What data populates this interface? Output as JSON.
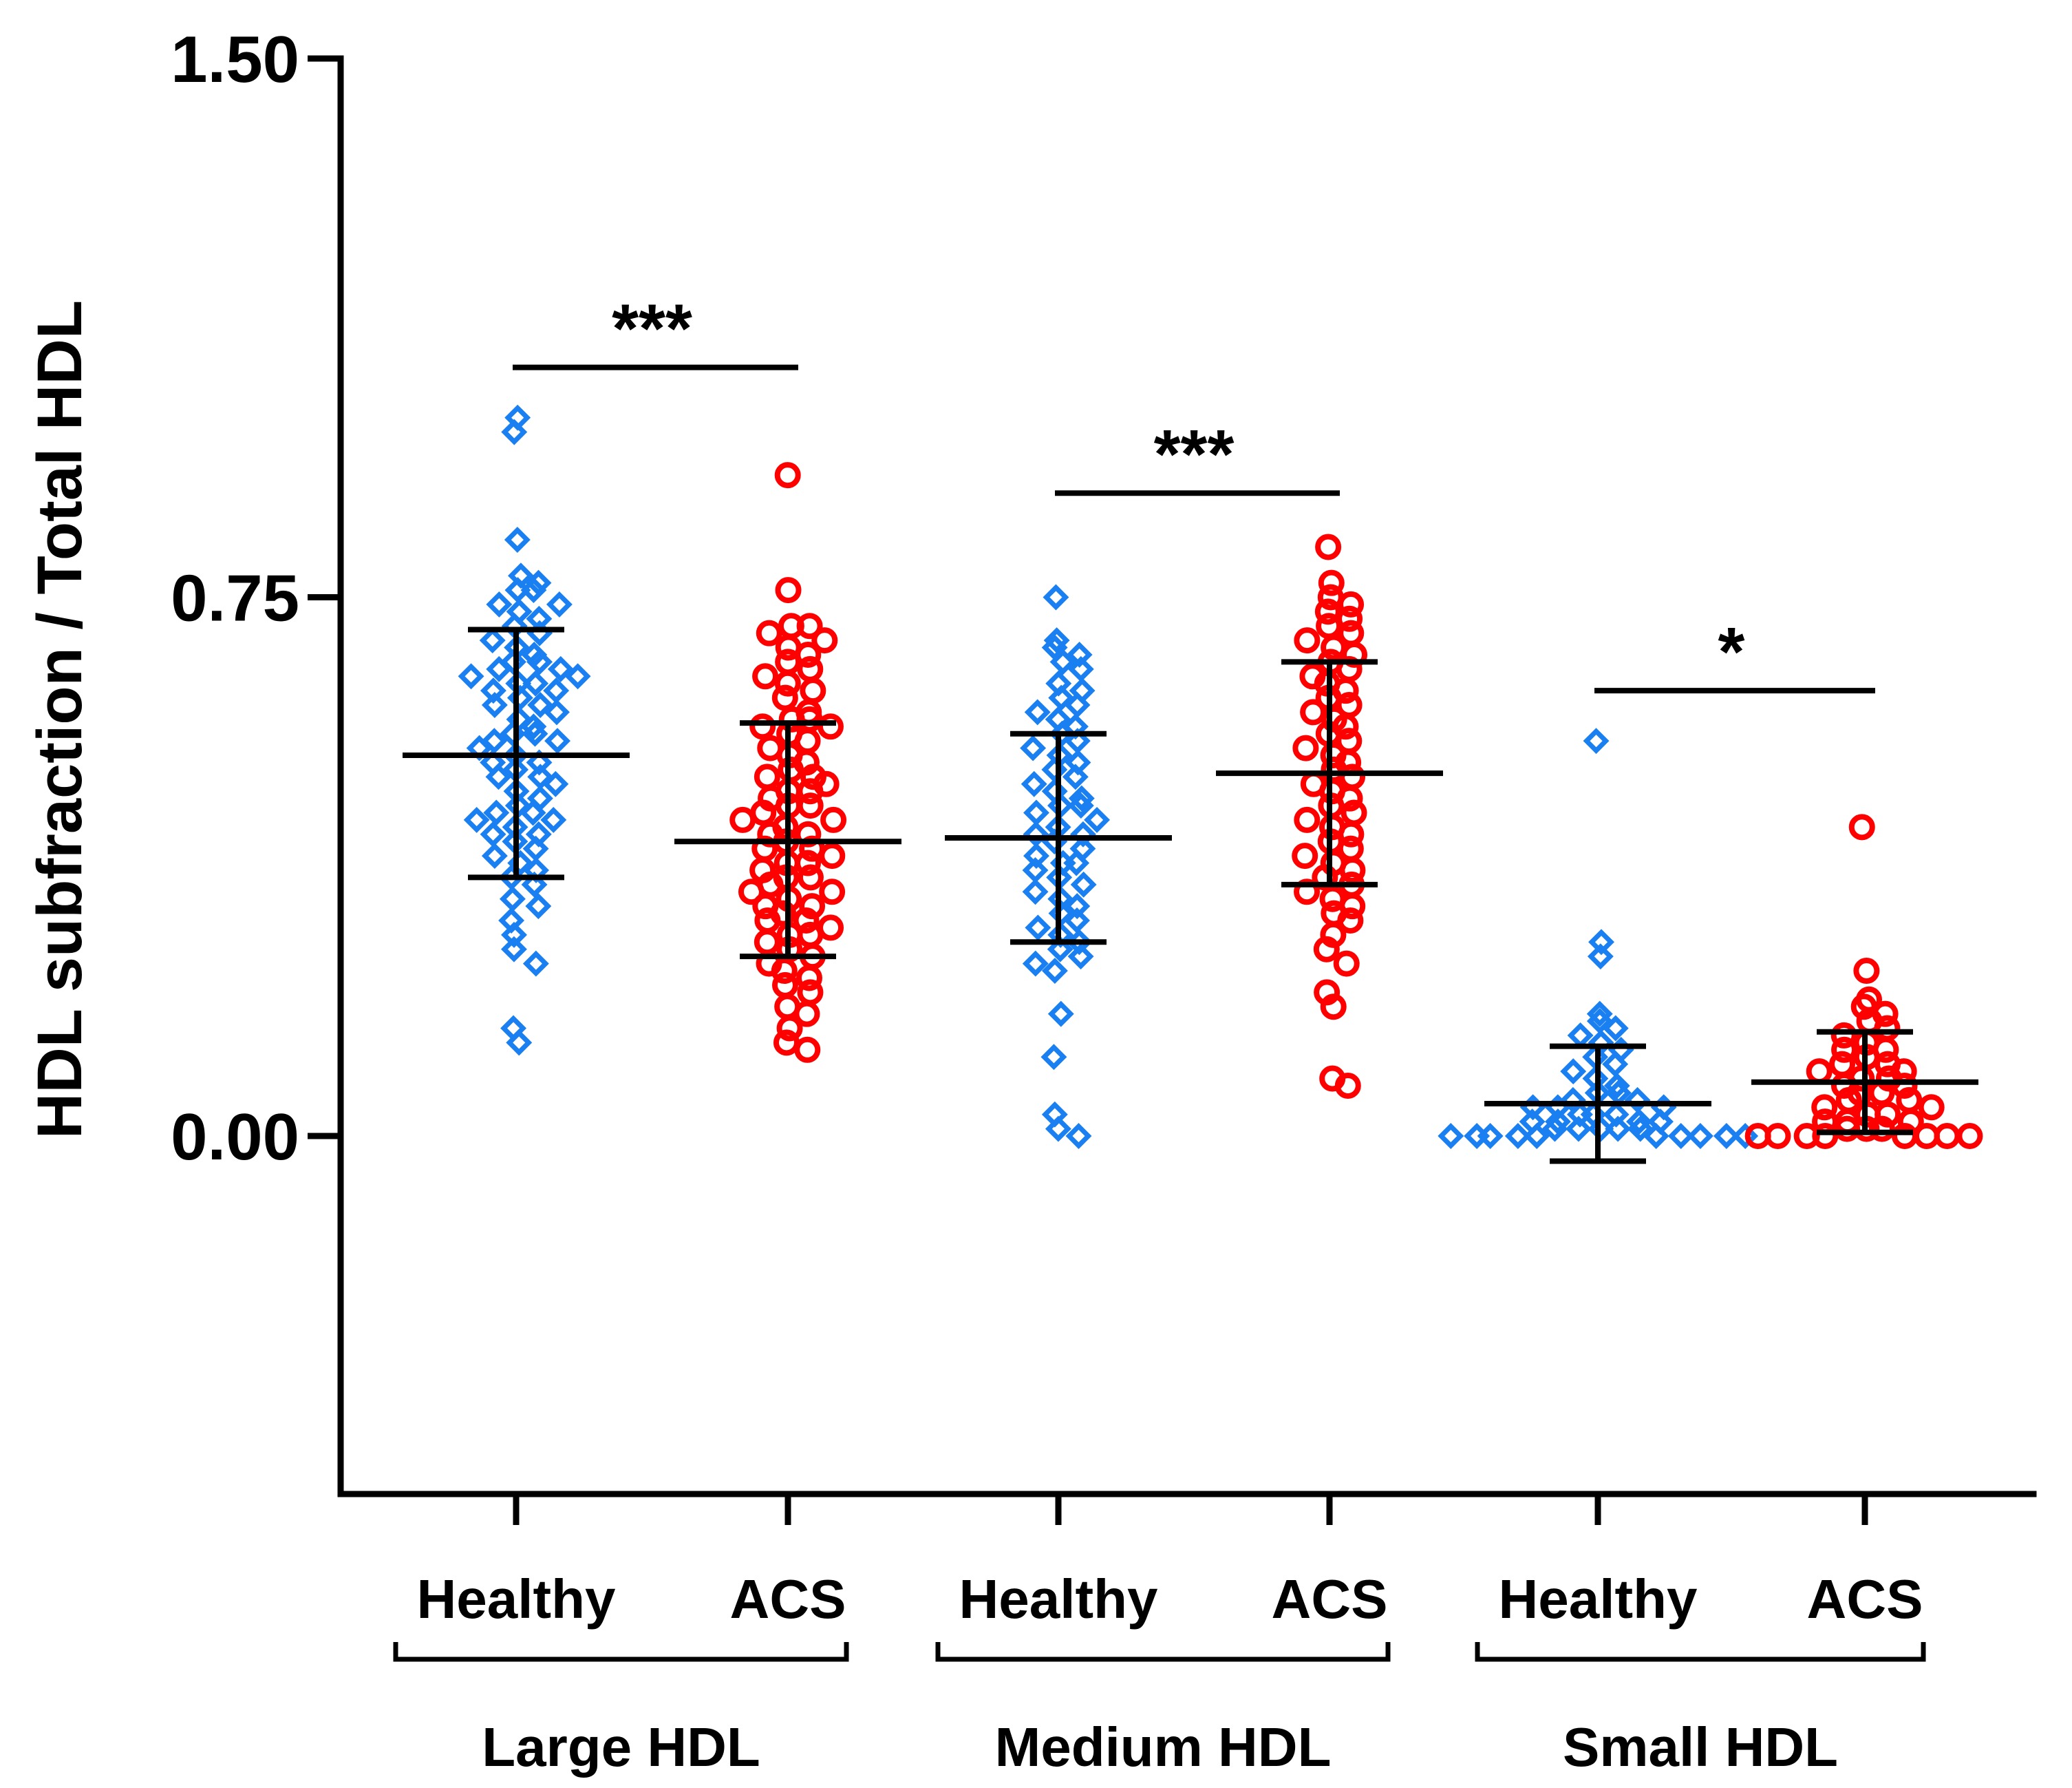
{
  "chart_data": {
    "type": "scatter",
    "title": "",
    "ylabel": "HDL subfraction / Total HDL",
    "xlabel": "",
    "ylim": [
      -0.5,
      1.5
    ],
    "yticks": [
      {
        "value": 1.5,
        "label": "1.50"
      },
      {
        "value": 0.75,
        "label": "0.75"
      },
      {
        "value": 0.0,
        "label": "0.00"
      }
    ],
    "colors": {
      "Healthy": "#1a7ff0",
      "ACS": "#ff0000",
      "axis": "#000000"
    },
    "markers": {
      "Healthy": "diamond",
      "ACS": "circle"
    },
    "groups": [
      {
        "name": "Large HDL",
        "significance": "***",
        "sig_y": 1.07,
        "series": [
          {
            "name": "Healthy",
            "mean": 0.53,
            "sd_low": 0.36,
            "sd_high": 0.705,
            "values": [
              1.0,
              0.98,
              0.83,
              0.78,
              0.77,
              0.76,
              0.76,
              0.74,
              0.74,
              0.73,
              0.72,
              0.71,
              0.7,
              0.69,
              0.68,
              0.67,
              0.66,
              0.66,
              0.65,
              0.65,
              0.64,
              0.64,
              0.63,
              0.63,
              0.62,
              0.62,
              0.61,
              0.6,
              0.6,
              0.59,
              0.58,
              0.57,
              0.56,
              0.56,
              0.55,
              0.55,
              0.54,
              0.53,
              0.52,
              0.52,
              0.51,
              0.5,
              0.5,
              0.49,
              0.48,
              0.47,
              0.46,
              0.45,
              0.45,
              0.44,
              0.44,
              0.43,
              0.42,
              0.42,
              0.41,
              0.4,
              0.39,
              0.38,
              0.37,
              0.36,
              0.35,
              0.33,
              0.32,
              0.3,
              0.28,
              0.26,
              0.24,
              0.15,
              0.13
            ]
          },
          {
            "name": "ACS",
            "mean": 0.41,
            "sd_low": 0.25,
            "sd_high": 0.575,
            "values": [
              0.92,
              0.76,
              0.71,
              0.71,
              0.7,
              0.69,
              0.68,
              0.67,
              0.66,
              0.65,
              0.64,
              0.63,
              0.62,
              0.61,
              0.59,
              0.58,
              0.58,
              0.57,
              0.57,
              0.56,
              0.55,
              0.54,
              0.53,
              0.52,
              0.51,
              0.5,
              0.5,
              0.49,
              0.48,
              0.48,
              0.47,
              0.46,
              0.46,
              0.45,
              0.44,
              0.44,
              0.43,
              0.42,
              0.42,
              0.41,
              0.4,
              0.4,
              0.39,
              0.38,
              0.38,
              0.37,
              0.36,
              0.36,
              0.35,
              0.34,
              0.34,
              0.33,
              0.32,
              0.32,
              0.31,
              0.3,
              0.3,
              0.29,
              0.28,
              0.28,
              0.27,
              0.26,
              0.25,
              0.24,
              0.23,
              0.22,
              0.21,
              0.2,
              0.18,
              0.17,
              0.15,
              0.13,
              0.12
            ]
          }
        ]
      },
      {
        "name": "Medium HDL",
        "significance": "***",
        "sig_y": 0.895,
        "series": [
          {
            "name": "Healthy",
            "mean": 0.415,
            "sd_low": 0.27,
            "sd_high": 0.56,
            "values": [
              0.75,
              0.69,
              0.68,
              0.67,
              0.66,
              0.65,
              0.63,
              0.62,
              0.61,
              0.6,
              0.59,
              0.58,
              0.57,
              0.56,
              0.55,
              0.54,
              0.53,
              0.52,
              0.51,
              0.5,
              0.49,
              0.48,
              0.47,
              0.46,
              0.46,
              0.45,
              0.44,
              0.43,
              0.42,
              0.42,
              0.41,
              0.4,
              0.39,
              0.38,
              0.38,
              0.37,
              0.36,
              0.35,
              0.34,
              0.33,
              0.32,
              0.31,
              0.3,
              0.29,
              0.28,
              0.27,
              0.26,
              0.25,
              0.24,
              0.23,
              0.17,
              0.11,
              0.03,
              0.01,
              0.0
            ]
          },
          {
            "name": "ACS",
            "mean": 0.505,
            "sd_low": 0.35,
            "sd_high": 0.66,
            "values": [
              0.82,
              0.77,
              0.75,
              0.74,
              0.73,
              0.72,
              0.71,
              0.7,
              0.69,
              0.68,
              0.67,
              0.66,
              0.65,
              0.64,
              0.63,
              0.62,
              0.61,
              0.6,
              0.59,
              0.58,
              0.57,
              0.56,
              0.55,
              0.54,
              0.53,
              0.52,
              0.51,
              0.5,
              0.49,
              0.48,
              0.47,
              0.46,
              0.45,
              0.44,
              0.43,
              0.42,
              0.41,
              0.4,
              0.39,
              0.38,
              0.37,
              0.36,
              0.35,
              0.34,
              0.33,
              0.32,
              0.31,
              0.3,
              0.28,
              0.26,
              0.24,
              0.2,
              0.18,
              0.08,
              0.07
            ]
          }
        ]
      },
      {
        "name": "Small HDL",
        "significance": "*",
        "sig_y": 0.62,
        "series": [
          {
            "name": "Healthy",
            "mean": 0.045,
            "sd_low": -0.035,
            "sd_high": 0.125,
            "values": [
              0.55,
              0.27,
              0.25,
              0.17,
              0.16,
              0.15,
              0.14,
              0.13,
              0.12,
              0.11,
              0.1,
              0.09,
              0.08,
              0.07,
              0.06,
              0.06,
              0.05,
              0.05,
              0.04,
              0.04,
              0.04,
              0.03,
              0.03,
              0.03,
              0.02,
              0.02,
              0.02,
              0.02,
              0.01,
              0.01,
              0.01,
              0.01,
              0.01,
              0.0,
              0.0,
              0.0,
              0.0,
              0.0,
              0.0,
              0.0,
              0.0,
              0.0,
              0.0
            ]
          },
          {
            "name": "ACS",
            "mean": 0.075,
            "sd_low": 0.005,
            "sd_high": 0.145,
            "values": [
              0.43,
              0.23,
              0.19,
              0.18,
              0.17,
              0.16,
              0.15,
              0.14,
              0.13,
              0.12,
              0.12,
              0.11,
              0.1,
              0.1,
              0.09,
              0.09,
              0.08,
              0.08,
              0.07,
              0.07,
              0.06,
              0.06,
              0.05,
              0.05,
              0.04,
              0.04,
              0.03,
              0.03,
              0.02,
              0.02,
              0.02,
              0.01,
              0.01,
              0.01,
              0.0,
              0.0,
              0.0,
              0.0,
              0.0,
              0.0,
              0.0,
              0.0
            ]
          }
        ]
      }
    ]
  }
}
